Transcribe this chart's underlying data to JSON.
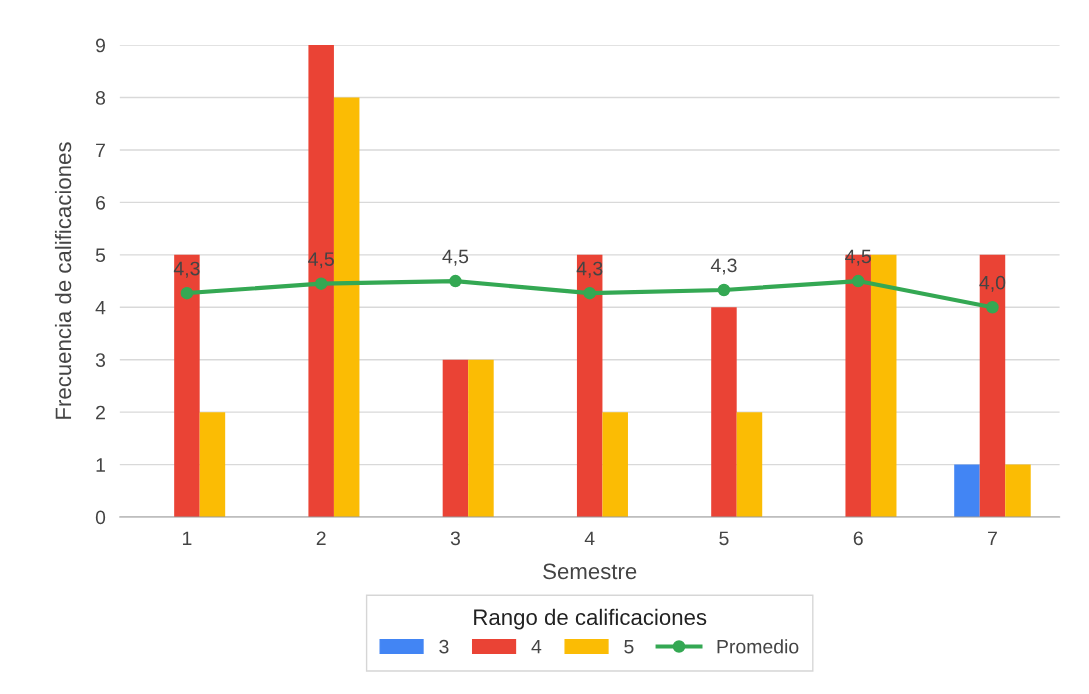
{
  "chart_data": {
    "type": "bar",
    "xlabel": "Semestre",
    "ylabel": "Frecuencia de calificaciones",
    "legend_title": "Rango de calificaciones",
    "categories": [
      "1",
      "2",
      "3",
      "4",
      "5",
      "6",
      "7"
    ],
    "series": [
      {
        "name": "3",
        "color": "#4285f4",
        "values": [
          null,
          null,
          null,
          null,
          null,
          null,
          1
        ]
      },
      {
        "name": "4",
        "color": "#ea4335",
        "values": [
          5,
          9,
          3,
          5,
          4,
          5,
          5
        ]
      },
      {
        "name": "5",
        "color": "#fbbc04",
        "values": [
          2,
          8,
          3,
          2,
          2,
          5,
          1
        ]
      },
      {
        "name": "Promedio",
        "type": "line",
        "color": "#34a853",
        "marker": "circle",
        "values": [
          4.27,
          4.45,
          4.5,
          4.27,
          4.33,
          4.5,
          4.0
        ],
        "value_labels": [
          "4,3",
          "4,5",
          "4,5",
          "4,3",
          "4,3",
          "4,5",
          "4,0"
        ]
      }
    ],
    "ylim": [
      0,
      9
    ],
    "yticks": [
      0,
      1,
      2,
      3,
      4,
      5,
      6,
      7,
      8,
      9
    ],
    "grid": "y",
    "legend": "bottom"
  }
}
